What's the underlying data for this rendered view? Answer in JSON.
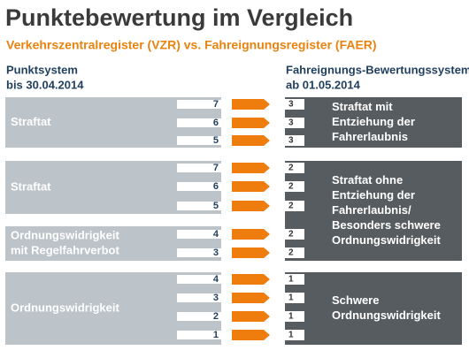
{
  "header": {
    "title": "Punktebewertung im Vergleich",
    "subtitle": "Verkehrszentralregister (VZR) vs. Fahreignungsregister (FAER)"
  },
  "left_header": {
    "title": "Punktsystem",
    "date": "bis 30.04.2014"
  },
  "right_header": {
    "title": "Fahreignungs-Bewertungssystem",
    "date": "ab 01.05.2014"
  },
  "old_groups": [
    {
      "label": [
        "Straftat"
      ],
      "rows": [
        {
          "old": 7,
          "new": 3
        },
        {
          "old": 6,
          "new": 3
        },
        {
          "old": 5,
          "new": 3
        }
      ]
    },
    {
      "label": [
        "Straftat"
      ],
      "rows": [
        {
          "old": 7,
          "new": 2
        },
        {
          "old": 6,
          "new": 2
        },
        {
          "old": 5,
          "new": 2
        }
      ]
    },
    {
      "label": [
        "Ordnungswidrigkeit",
        "mit Regelfahrverbot"
      ],
      "rows": [
        {
          "old": 4,
          "new": 2
        },
        {
          "old": 3,
          "new": 2
        }
      ]
    },
    {
      "label": [
        "Ordnungswidrigkeit"
      ],
      "rows": [
        {
          "old": 4,
          "new": 1
        },
        {
          "old": 3,
          "new": 1
        },
        {
          "old": 2,
          "new": 1
        },
        {
          "old": 1,
          "new": 1
        }
      ]
    }
  ],
  "new_groups": [
    {
      "label": [
        "Straftat mit",
        "Entziehung der",
        "Fahrerlaubnis"
      ]
    },
    {
      "label": [
        "Straftat ohne",
        "Entziehung der",
        "Fahrerlaubnis/",
        "Besonders schwere",
        "Ordnungswidrigkeit"
      ]
    },
    {
      "label": [
        "Schwere",
        "Ordnungswidrigkeit"
      ]
    }
  ]
}
